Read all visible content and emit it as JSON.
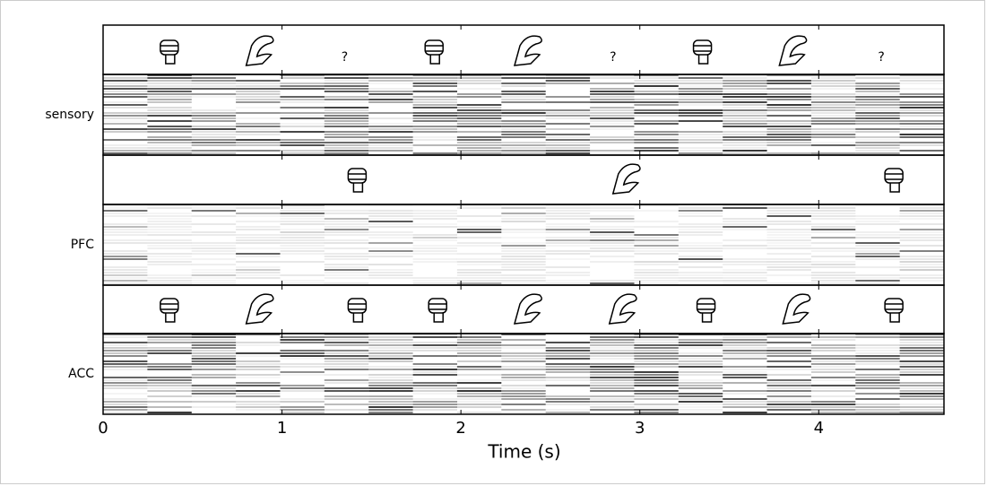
{
  "chart_data": {
    "type": "raster",
    "rows": [
      "sensory",
      "PFC",
      "ACC"
    ],
    "question_marks": {
      "labels": [
        "?",
        "?",
        "?"
      ],
      "x": [
        1.35,
        2.85,
        4.35
      ]
    },
    "xlabel": "Time (s)",
    "xlim": [
      0,
      4.7
    ],
    "xticks": [
      0,
      1,
      2,
      3,
      4
    ]
  }
}
